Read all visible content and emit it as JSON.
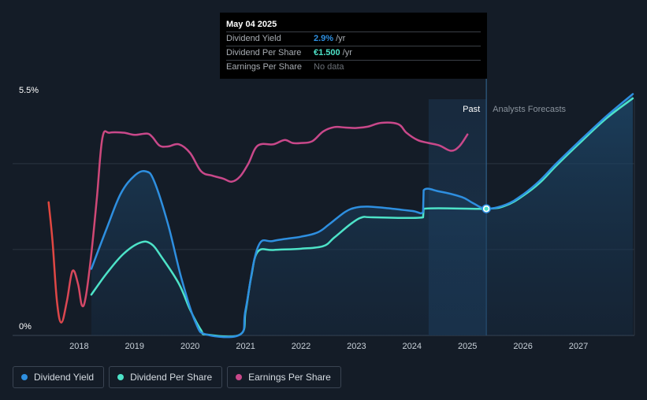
{
  "chart_data": {
    "type": "line",
    "y_ticks": [
      {
        "label": "5.5%",
        "value": 5.5
      },
      {
        "label": "0%",
        "value": 0
      }
    ],
    "ylim": [
      0,
      5.5
    ],
    "xlim": [
      2017.0,
      2028.0
    ],
    "x_ticks": [
      {
        "label": "2018",
        "value": 2018
      },
      {
        "label": "2019",
        "value": 2019
      },
      {
        "label": "2020",
        "value": 2020
      },
      {
        "label": "2021",
        "value": 2021
      },
      {
        "label": "2022",
        "value": 2022
      },
      {
        "label": "2023",
        "value": 2023
      },
      {
        "label": "2024",
        "value": 2024
      },
      {
        "label": "2025",
        "value": 2025
      },
      {
        "label": "2026",
        "value": 2026
      },
      {
        "label": "2027",
        "value": 2027
      }
    ],
    "past_label": "Past",
    "forecast_label": "Analysts Forecasts",
    "past_region_start": 2024.3,
    "forecast_start": 2025.34,
    "grid": true,
    "legend_position": "bottom-left",
    "series": [
      {
        "name": "Dividend Yield",
        "color": "#2e8fe0",
        "points": [
          [
            2018.22,
            1.55
          ],
          [
            2018.5,
            2.5
          ],
          [
            2018.75,
            3.3
          ],
          [
            2019.0,
            3.72
          ],
          [
            2019.2,
            3.82
          ],
          [
            2019.35,
            3.6
          ],
          [
            2019.6,
            2.6
          ],
          [
            2019.85,
            1.3
          ],
          [
            2020.1,
            0.3
          ],
          [
            2020.3,
            0.02
          ],
          [
            2020.9,
            0.02
          ],
          [
            2021.0,
            0.6
          ],
          [
            2021.22,
            2.05
          ],
          [
            2021.5,
            2.2
          ],
          [
            2022.0,
            2.3
          ],
          [
            2022.3,
            2.4
          ],
          [
            2022.5,
            2.58
          ],
          [
            2022.8,
            2.88
          ],
          [
            2023.0,
            2.98
          ],
          [
            2023.2,
            3.0
          ],
          [
            2023.5,
            2.97
          ],
          [
            2024.0,
            2.9
          ],
          [
            2024.2,
            2.88
          ],
          [
            2024.21,
            3.38
          ],
          [
            2024.5,
            3.35
          ],
          [
            2024.9,
            3.22
          ],
          [
            2025.1,
            3.08
          ],
          [
            2025.34,
            2.95
          ],
          [
            2025.7,
            3.05
          ],
          [
            2026.0,
            3.28
          ],
          [
            2026.3,
            3.6
          ],
          [
            2026.6,
            4.0
          ],
          [
            2027.0,
            4.5
          ],
          [
            2027.5,
            5.1
          ],
          [
            2027.98,
            5.62
          ]
        ]
      },
      {
        "name": "Dividend Per Share",
        "color": "#4de3c8",
        "points": [
          [
            2018.22,
            0.95
          ],
          [
            2018.5,
            1.45
          ],
          [
            2018.8,
            1.9
          ],
          [
            2019.1,
            2.16
          ],
          [
            2019.3,
            2.13
          ],
          [
            2019.5,
            1.8
          ],
          [
            2019.8,
            1.2
          ],
          [
            2020.0,
            0.6
          ],
          [
            2020.2,
            0.12
          ],
          [
            2020.3,
            0.02
          ],
          [
            2020.9,
            0.02
          ],
          [
            2021.0,
            0.55
          ],
          [
            2021.1,
            1.35
          ],
          [
            2021.22,
            1.95
          ],
          [
            2021.5,
            1.99
          ],
          [
            2022.0,
            2.02
          ],
          [
            2022.4,
            2.08
          ],
          [
            2022.6,
            2.28
          ],
          [
            2022.9,
            2.6
          ],
          [
            2023.1,
            2.75
          ],
          [
            2023.3,
            2.75
          ],
          [
            2024.2,
            2.75
          ],
          [
            2024.21,
            2.95
          ],
          [
            2025.34,
            2.95
          ],
          [
            2025.7,
            3.03
          ],
          [
            2026.0,
            3.25
          ],
          [
            2026.3,
            3.55
          ],
          [
            2026.6,
            3.95
          ],
          [
            2027.0,
            4.45
          ],
          [
            2027.5,
            5.05
          ],
          [
            2027.98,
            5.52
          ]
        ]
      },
      {
        "name": "Earnings Per Share",
        "color": "#c9488a",
        "gradient_start_color": "#e3473a",
        "points": [
          [
            2017.45,
            3.1
          ],
          [
            2017.52,
            2.2
          ],
          [
            2017.6,
            0.8
          ],
          [
            2017.68,
            0.3
          ],
          [
            2017.78,
            0.8
          ],
          [
            2017.88,
            1.5
          ],
          [
            2017.98,
            1.2
          ],
          [
            2018.05,
            0.7
          ],
          [
            2018.12,
            0.9
          ],
          [
            2018.22,
            1.9
          ],
          [
            2018.32,
            3.2
          ],
          [
            2018.42,
            4.6
          ],
          [
            2018.55,
            4.72
          ],
          [
            2018.8,
            4.72
          ],
          [
            2019.0,
            4.67
          ],
          [
            2019.22,
            4.7
          ],
          [
            2019.32,
            4.62
          ],
          [
            2019.45,
            4.42
          ],
          [
            2019.6,
            4.4
          ],
          [
            2019.8,
            4.45
          ],
          [
            2020.0,
            4.25
          ],
          [
            2020.2,
            3.82
          ],
          [
            2020.4,
            3.72
          ],
          [
            2020.6,
            3.65
          ],
          [
            2020.75,
            3.58
          ],
          [
            2020.9,
            3.7
          ],
          [
            2021.05,
            4.0
          ],
          [
            2021.22,
            4.42
          ],
          [
            2021.5,
            4.45
          ],
          [
            2021.7,
            4.55
          ],
          [
            2021.85,
            4.48
          ],
          [
            2022.0,
            4.48
          ],
          [
            2022.2,
            4.52
          ],
          [
            2022.4,
            4.75
          ],
          [
            2022.6,
            4.85
          ],
          [
            2022.8,
            4.84
          ],
          [
            2023.0,
            4.83
          ],
          [
            2023.2,
            4.86
          ],
          [
            2023.45,
            4.95
          ],
          [
            2023.75,
            4.92
          ],
          [
            2023.9,
            4.72
          ],
          [
            2024.1,
            4.55
          ],
          [
            2024.3,
            4.48
          ],
          [
            2024.5,
            4.42
          ],
          [
            2024.7,
            4.3
          ],
          [
            2024.85,
            4.4
          ],
          [
            2025.0,
            4.68
          ]
        ]
      }
    ]
  },
  "tooltip": {
    "date": "May 04 2025",
    "rows": [
      {
        "label": "Dividend Yield",
        "value": "2.9%",
        "unit": "/yr",
        "color": "#2e8fe0"
      },
      {
        "label": "Dividend Per Share",
        "value": "€1.500",
        "unit": "/yr",
        "color": "#4de3c8"
      },
      {
        "label": "Earnings Per Share",
        "value": "No data",
        "unit": "",
        "color": "#6b7077"
      }
    ]
  },
  "legend": [
    {
      "label": "Dividend Yield",
      "color": "#2e8fe0"
    },
    {
      "label": "Dividend Per Share",
      "color": "#4de3c8"
    },
    {
      "label": "Earnings Per Share",
      "color": "#c9488a"
    }
  ]
}
